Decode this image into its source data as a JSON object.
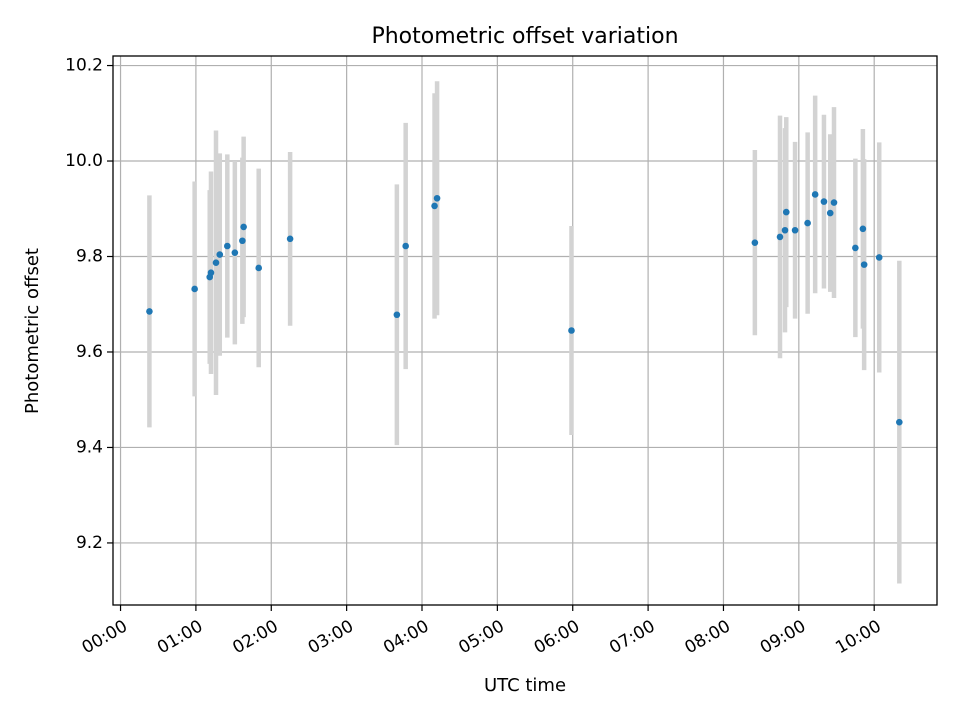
{
  "chart_data": {
    "type": "scatter",
    "title": "Photometric offset variation",
    "xlabel": "UTC time",
    "ylabel": "Photometric offset",
    "x_axis_type": "time",
    "xlim": [
      "23:54",
      "10:50"
    ],
    "ylim": [
      9.07,
      10.22
    ],
    "grid": true,
    "legend": "none",
    "x_ticks": [
      "00:00",
      "01:00",
      "02:00",
      "03:00",
      "04:00",
      "05:00",
      "06:00",
      "07:00",
      "08:00",
      "09:00",
      "10:00"
    ],
    "y_ticks": [
      9.2,
      9.4,
      9.6,
      9.8,
      10.0,
      10.2
    ],
    "y_tick_labels": [
      "9.2",
      "9.4",
      "9.6",
      "9.8",
      "10.0",
      "10.2"
    ],
    "colors": {
      "point": "#1f77b4",
      "errorbar": "#d3d3d3",
      "grid": "#b0b0b0"
    },
    "series": [
      {
        "points": [
          {
            "x": "00:23",
            "y": 9.685,
            "err": 0.243
          },
          {
            "x": "00:59",
            "y": 9.732,
            "err": 0.225
          },
          {
            "x": "01:11",
            "y": 9.757,
            "err": 0.182
          },
          {
            "x": "01:12",
            "y": 9.766,
            "err": 0.212
          },
          {
            "x": "01:16",
            "y": 9.787,
            "err": 0.277
          },
          {
            "x": "01:19",
            "y": 9.804,
            "err": 0.212
          },
          {
            "x": "01:25",
            "y": 9.822,
            "err": 0.192
          },
          {
            "x": "01:31",
            "y": 9.808,
            "err": 0.192
          },
          {
            "x": "01:37",
            "y": 9.833,
            "err": 0.174
          },
          {
            "x": "01:38",
            "y": 9.862,
            "err": 0.189
          },
          {
            "x": "01:50",
            "y": 9.776,
            "err": 0.208
          },
          {
            "x": "02:15",
            "y": 9.837,
            "err": 0.182
          },
          {
            "x": "03:40",
            "y": 9.678,
            "err": 0.273
          },
          {
            "x": "03:47",
            "y": 9.822,
            "err": 0.258
          },
          {
            "x": "04:10",
            "y": 9.906,
            "err": 0.236
          },
          {
            "x": "04:12",
            "y": 9.922,
            "err": 0.245
          },
          {
            "x": "05:59",
            "y": 9.645,
            "err": 0.219
          },
          {
            "x": "08:25",
            "y": 9.829,
            "err": 0.194
          },
          {
            "x": "08:45",
            "y": 9.841,
            "err": 0.254
          },
          {
            "x": "08:49",
            "y": 9.855,
            "err": 0.214
          },
          {
            "x": "08:50",
            "y": 9.893,
            "err": 0.199
          },
          {
            "x": "08:57",
            "y": 9.855,
            "err": 0.185
          },
          {
            "x": "09:07",
            "y": 9.87,
            "err": 0.19
          },
          {
            "x": "09:13",
            "y": 9.93,
            "err": 0.207
          },
          {
            "x": "09:20",
            "y": 9.915,
            "err": 0.182
          },
          {
            "x": "09:25",
            "y": 9.891,
            "err": 0.165
          },
          {
            "x": "09:28",
            "y": 9.913,
            "err": 0.2
          },
          {
            "x": "09:45",
            "y": 9.818,
            "err": 0.187
          },
          {
            "x": "09:51",
            "y": 9.858,
            "err": 0.209
          },
          {
            "x": "09:52",
            "y": 9.783,
            "err": 0.221
          },
          {
            "x": "10:04",
            "y": 9.798,
            "err": 0.241
          },
          {
            "x": "10:20",
            "y": 9.453,
            "err": 0.338
          }
        ]
      }
    ]
  }
}
